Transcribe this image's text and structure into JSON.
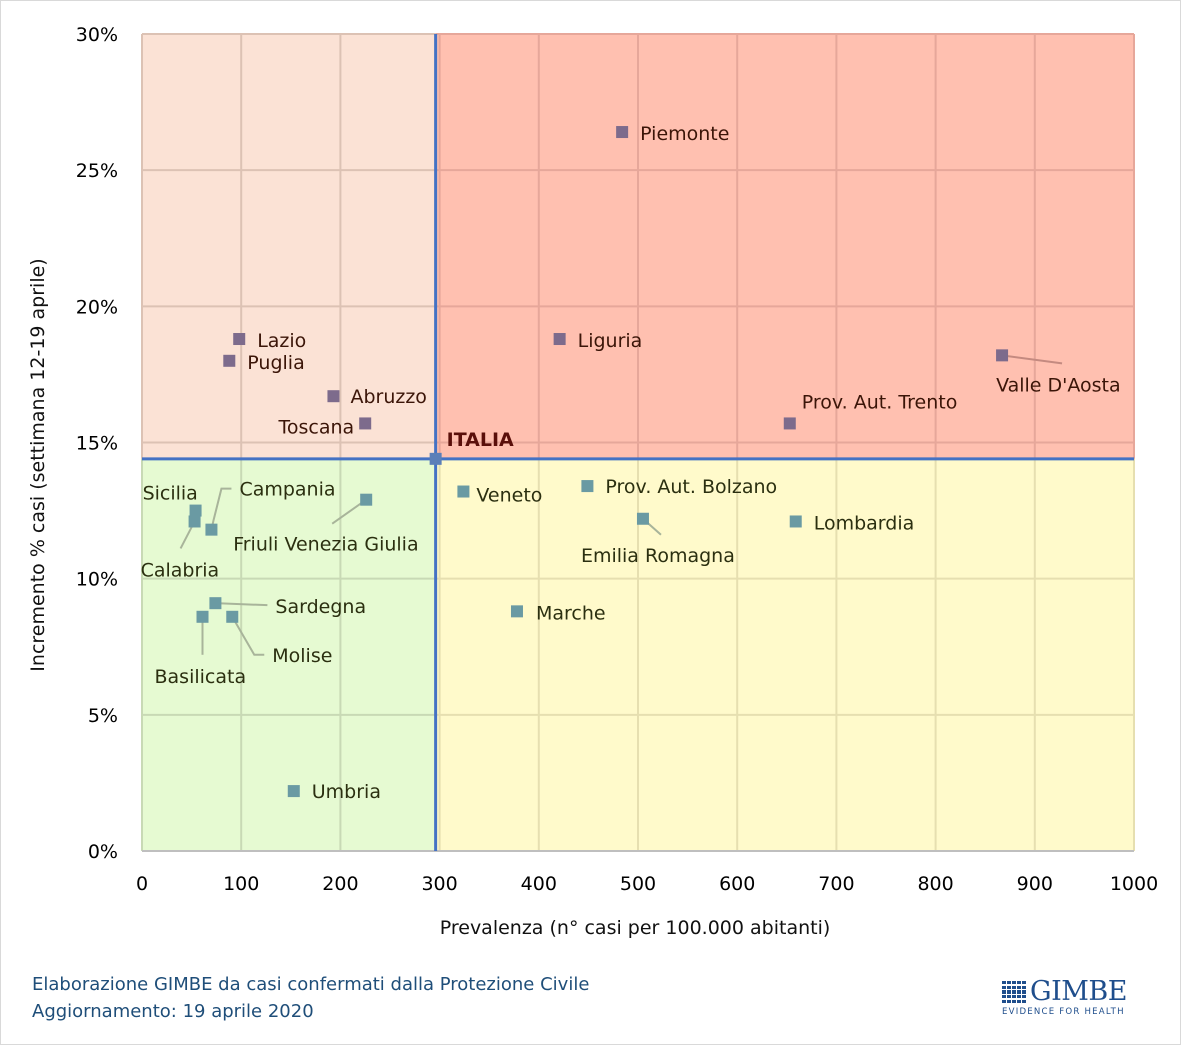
{
  "chart_data": {
    "type": "scatter",
    "title": "",
    "xlabel": "Prevalenza  (n° casi per 100.000 abitanti)",
    "ylabel": "Incremento %  casi (settimana 12-19 aprile)",
    "xlim": [
      0,
      1000
    ],
    "ylim": [
      0,
      30
    ],
    "x_ticks": [
      0,
      100,
      200,
      300,
      400,
      500,
      600,
      700,
      800,
      900,
      1000
    ],
    "x_tick_labels": [
      "0",
      "100",
      "200",
      "300",
      "400",
      "500",
      "600",
      "700",
      "800",
      "900",
      "1000"
    ],
    "y_ticks": [
      0,
      5,
      10,
      15,
      20,
      25,
      30
    ],
    "y_tick_labels": [
      "0%",
      "5%",
      "10%",
      "15%",
      "20%",
      "25%",
      "30%"
    ],
    "grid": true,
    "legend": "none",
    "reference": {
      "label": "ITALIA",
      "x": 296,
      "y": 14.4
    },
    "quadrant_colors": {
      "top_left": "#fbe2d5",
      "top_right": "#ffc0b0",
      "bottom_left": "#e6fad2",
      "bottom_right": "#fffacb"
    },
    "reference_line_color": "#4472c4",
    "points": [
      {
        "name": "Piemonte",
        "x": 484,
        "y": 26.4,
        "quadrant": "high"
      },
      {
        "name": "Liguria",
        "x": 421,
        "y": 18.8,
        "quadrant": "high"
      },
      {
        "name": "Valle D'Aosta",
        "x": 867,
        "y": 18.2,
        "quadrant": "high"
      },
      {
        "name": "Prov. Aut. Trento",
        "x": 653,
        "y": 15.7,
        "quadrant": "high"
      },
      {
        "name": "Lazio",
        "x": 98,
        "y": 18.8,
        "quadrant": "high"
      },
      {
        "name": "Puglia",
        "x": 88,
        "y": 18.0,
        "quadrant": "high"
      },
      {
        "name": "Abruzzo",
        "x": 193,
        "y": 16.7,
        "quadrant": "high"
      },
      {
        "name": "Toscana",
        "x": 225,
        "y": 15.7,
        "quadrant": "high"
      },
      {
        "name": "Veneto",
        "x": 324,
        "y": 13.2,
        "quadrant": "low"
      },
      {
        "name": "Prov. Aut. Bolzano",
        "x": 449,
        "y": 13.4,
        "quadrant": "low"
      },
      {
        "name": "Emilia Romagna",
        "x": 505,
        "y": 12.2,
        "quadrant": "low"
      },
      {
        "name": "Lombardia",
        "x": 659,
        "y": 12.1,
        "quadrant": "low"
      },
      {
        "name": "Marche",
        "x": 378,
        "y": 8.8,
        "quadrant": "low"
      },
      {
        "name": "Sicilia",
        "x": 54,
        "y": 12.5,
        "quadrant": "low"
      },
      {
        "name": "Calabria",
        "x": 53,
        "y": 12.1,
        "quadrant": "low"
      },
      {
        "name": "Campania",
        "x": 70,
        "y": 11.8,
        "quadrant": "low"
      },
      {
        "name": "Friuli Venezia Giulia",
        "x": 226,
        "y": 12.9,
        "quadrant": "low"
      },
      {
        "name": "Sardegna",
        "x": 74,
        "y": 9.1,
        "quadrant": "low"
      },
      {
        "name": "Basilicata",
        "x": 61,
        "y": 8.6,
        "quadrant": "low"
      },
      {
        "name": "Molise",
        "x": 91,
        "y": 8.6,
        "quadrant": "low"
      },
      {
        "name": "Umbria",
        "x": 153,
        "y": 2.2,
        "quadrant": "low"
      }
    ]
  },
  "footer": {
    "line1": "Elaborazione GIMBE da casi confermati dalla Protezione Civile",
    "line2": "Aggiornamento: 19 aprile 2020"
  },
  "logo": {
    "name": "GIMBE",
    "tagline": "EVIDENCE FOR HEALTH"
  }
}
